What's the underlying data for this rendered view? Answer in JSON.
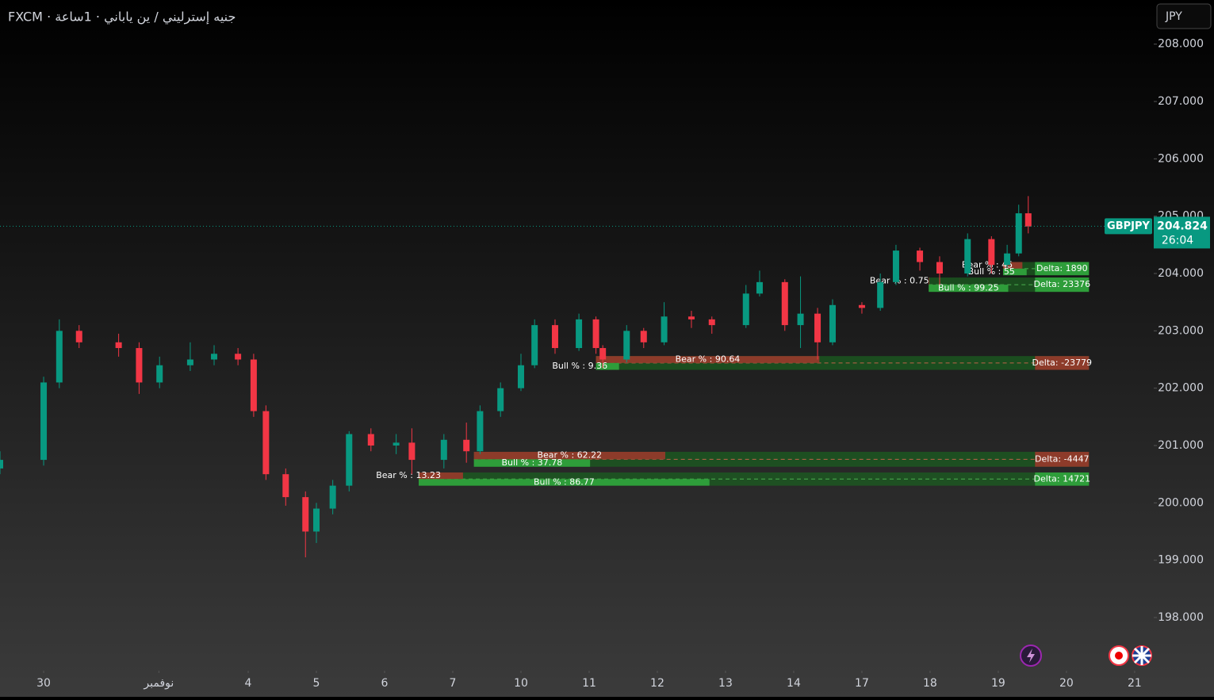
{
  "chart_data": {
    "type": "candlestick",
    "title": "FXCM · جنيه إسترليني / ين ياباني · 1ساعة",
    "currency": "JPY",
    "symbol": "GBPJPY",
    "price": 204.824,
    "countdown": "26:04",
    "up_color": "#089981",
    "down_color": "#f23645",
    "x": [
      -0.64,
      0,
      0.23,
      0.52,
      1.1,
      1.4,
      1.7,
      2.15,
      2.5,
      2.85,
      3.08,
      3.26,
      3.55,
      3.84,
      4.0,
      4.24,
      4.48,
      4.8,
      5.17,
      5.4,
      5.87,
      6.2,
      6.4,
      6.7,
      7.0,
      7.2,
      7.5,
      7.85,
      8.1,
      8.2,
      8.55,
      8.8,
      9.1,
      9.5,
      9.8,
      10.3,
      10.5,
      10.87,
      11.1,
      11.35,
      11.57,
      12.0,
      12.27,
      12.5,
      12.85,
      13.14,
      13.55,
      13.9,
      14.13,
      14.3,
      14.44
    ],
    "open": [
      200.6,
      200.75,
      202.1,
      203.0,
      202.8,
      202.7,
      202.1,
      202.4,
      202.5,
      202.6,
      202.5,
      201.6,
      200.5,
      200.1,
      199.5,
      199.9,
      200.3,
      201.2,
      201.0,
      201.05,
      200.75,
      201.1,
      200.9,
      201.6,
      202.0,
      202.4,
      203.1,
      202.7,
      203.2,
      202.7,
      202.5,
      203.0,
      202.8,
      203.25,
      203.2,
      203.1,
      203.65,
      203.85,
      203.1,
      203.3,
      202.8,
      203.45,
      203.4,
      203.85,
      204.4,
      204.2,
      204.0,
      204.6,
      204.15,
      204.35,
      205.05
    ],
    "high": [
      200.9,
      202.2,
      203.2,
      203.1,
      202.95,
      202.8,
      202.55,
      202.8,
      202.75,
      202.7,
      202.6,
      201.7,
      200.6,
      200.2,
      200.0,
      200.4,
      201.25,
      201.3,
      201.2,
      201.3,
      201.2,
      201.4,
      201.7,
      202.1,
      202.6,
      203.2,
      203.2,
      203.3,
      203.25,
      202.75,
      203.1,
      203.05,
      203.5,
      203.35,
      203.25,
      203.8,
      204.05,
      203.9,
      203.95,
      203.4,
      203.55,
      203.5,
      204.0,
      204.5,
      204.45,
      204.3,
      204.7,
      204.65,
      204.5,
      205.2,
      205.35
    ],
    "low": [
      200.5,
      200.65,
      202.0,
      202.7,
      202.55,
      201.9,
      202.0,
      202.3,
      202.4,
      202.4,
      201.5,
      200.4,
      199.95,
      199.05,
      199.3,
      199.8,
      200.2,
      200.9,
      200.85,
      200.5,
      200.6,
      200.7,
      200.85,
      201.5,
      201.95,
      202.35,
      202.6,
      202.65,
      202.6,
      202.35,
      202.45,
      202.7,
      202.75,
      203.05,
      202.95,
      203.05,
      203.6,
      203.0,
      202.7,
      202.5,
      202.75,
      203.3,
      203.35,
      203.8,
      204.05,
      203.8,
      203.95,
      204.0,
      204.1,
      204.3,
      204.7
    ],
    "close": [
      200.75,
      202.1,
      203.0,
      202.8,
      202.7,
      202.1,
      202.4,
      202.5,
      202.6,
      202.5,
      201.6,
      200.5,
      200.1,
      199.5,
      199.9,
      200.3,
      201.2,
      201.0,
      201.05,
      200.75,
      201.1,
      200.9,
      201.6,
      202.0,
      202.4,
      203.1,
      202.7,
      203.2,
      202.7,
      202.5,
      203.0,
      202.8,
      203.25,
      203.2,
      203.1,
      203.65,
      203.85,
      203.1,
      203.3,
      202.8,
      203.45,
      203.4,
      203.85,
      204.4,
      204.2,
      204.0,
      204.6,
      204.15,
      204.35,
      205.05,
      204.82
    ],
    "zones": [
      {
        "top": 204.2,
        "bottom": 203.97,
        "start": 14.07,
        "end": 15.33,
        "bear": 45,
        "bull": 55,
        "bear_label": "Bear % : 45",
        "bull_label": "Bull % : 55",
        "delta": 1890,
        "delta_label": "Delta: 1890"
      },
      {
        "top": 203.93,
        "bottom": 203.68,
        "start": 12.98,
        "end": 15.33,
        "bear": 0.75,
        "bull": 99.25,
        "bear_label": "Bear % : 0.75",
        "bull_label": "Bull % : 99.25",
        "delta": 23376,
        "delta_label": "Delta: 23376"
      },
      {
        "top": 202.56,
        "bottom": 202.32,
        "start": 8.1,
        "end": 15.33,
        "bear": 90.64,
        "bull": 9.36,
        "bear_label": "Bear % : 90.64",
        "bull_label": "Bull % : 9.36",
        "delta": -23779,
        "delta_label": "Delta: -23779"
      },
      {
        "top": 200.89,
        "bottom": 200.63,
        "start": 6.31,
        "end": 15.33,
        "bear": 62.22,
        "bull": 37.78,
        "bear_label": "Bear % : 62.22",
        "bull_label": "Bull % : 37.78",
        "delta": -4447,
        "delta_label": "Delta: -4447"
      },
      {
        "top": 200.53,
        "bottom": 200.3,
        "start": 5.5,
        "end": 15.33,
        "bear": 13.23,
        "bull": 86.77,
        "bear_label": "Bear % : 13.23",
        "bull_label": "Bull % : 86.77",
        "delta": 14721,
        "delta_label": "Delta: 14721"
      }
    ],
    "xlim": [
      -0.64,
      16.28
    ],
    "ylim": [
      197.35,
      208.77
    ],
    "xticks": [
      {
        "value": 0,
        "label": "30"
      },
      {
        "value": 1.69,
        "label": "نوفمبر"
      },
      {
        "value": 3,
        "label": "4"
      },
      {
        "value": 4,
        "label": "5"
      },
      {
        "value": 5,
        "label": "6"
      },
      {
        "value": 6,
        "label": "7"
      },
      {
        "value": 7,
        "label": "10"
      },
      {
        "value": 8,
        "label": "11"
      },
      {
        "value": 9,
        "label": "12"
      },
      {
        "value": 10,
        "label": "13"
      },
      {
        "value": 11,
        "label": "14"
      },
      {
        "value": 12,
        "label": "17"
      },
      {
        "value": 13,
        "label": "18"
      },
      {
        "value": 14,
        "label": "19"
      },
      {
        "value": 15,
        "label": "20"
      },
      {
        "value": 16,
        "label": "21"
      }
    ],
    "yticks": [
      {
        "value": 208,
        "label": "208.000"
      },
      {
        "value": 207,
        "label": "207.000"
      },
      {
        "value": 206,
        "label": "206.000"
      },
      {
        "value": 205,
        "label": "205.000"
      },
      {
        "value": 204,
        "label": "204.000"
      },
      {
        "value": 203,
        "label": "203.000"
      },
      {
        "value": 202,
        "label": "202.000"
      },
      {
        "value": 201,
        "label": "201.000"
      },
      {
        "value": 200,
        "label": "200.000"
      },
      {
        "value": 199,
        "label": "199.000"
      },
      {
        "value": 198,
        "label": "198.000"
      }
    ]
  }
}
